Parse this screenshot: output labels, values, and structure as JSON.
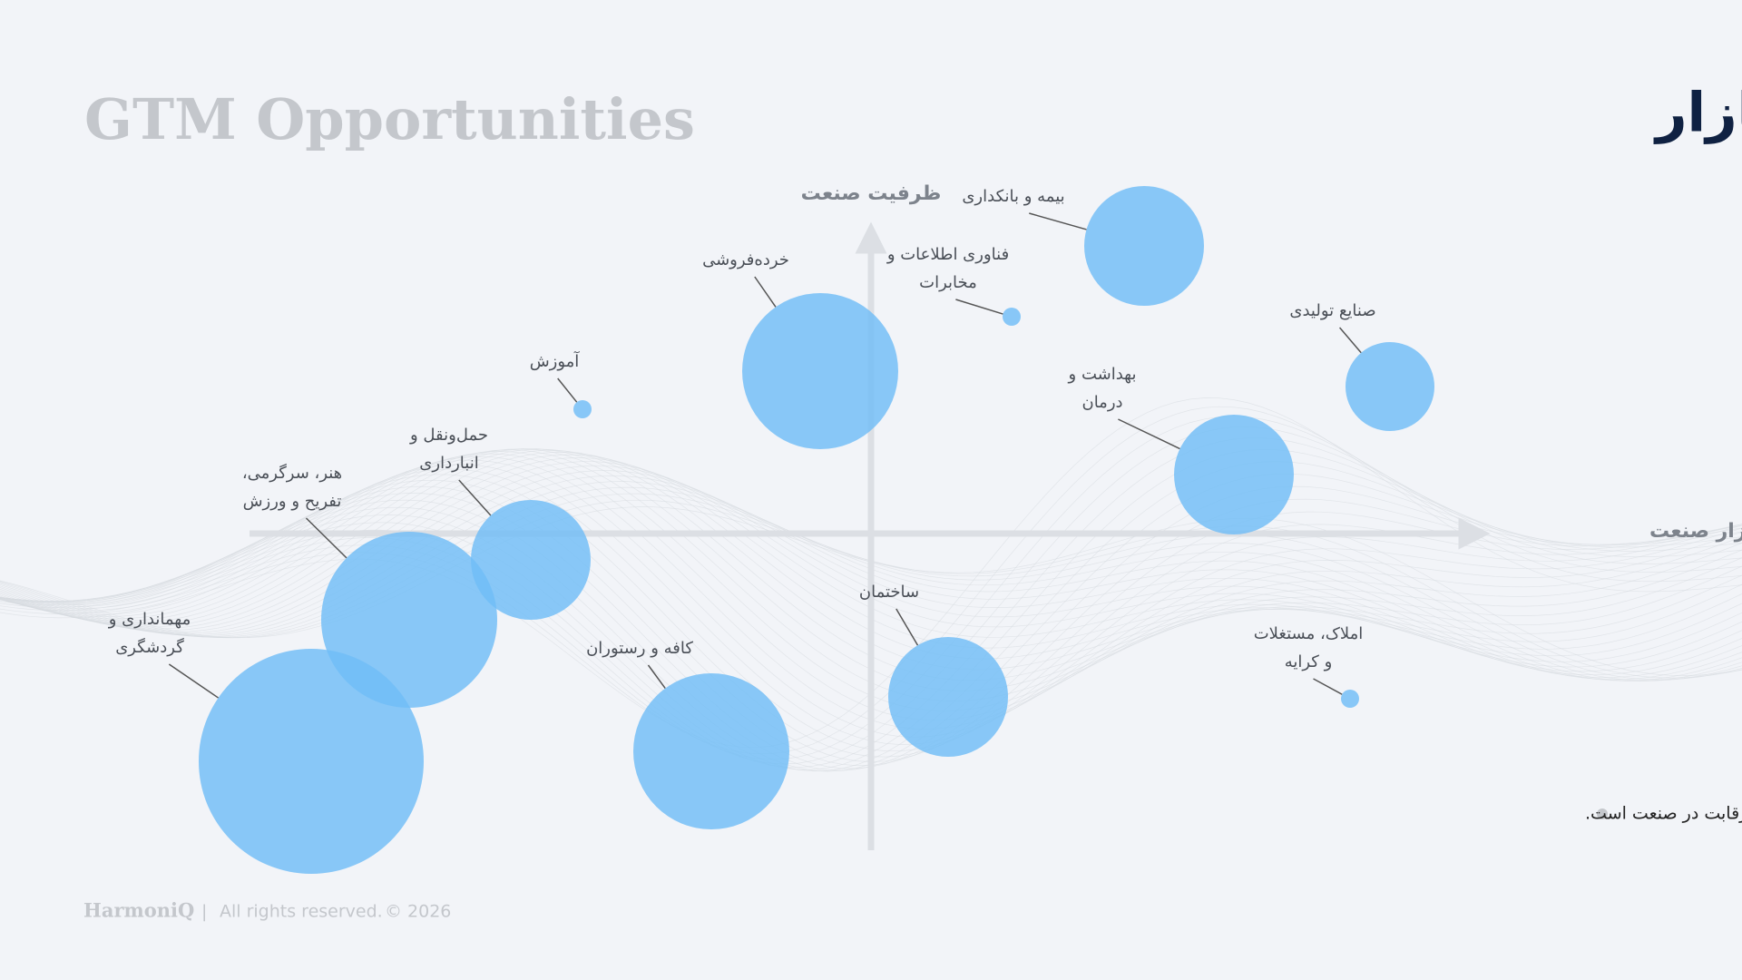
{
  "header": {
    "title_fa": "فرصت‌سنجی ورود به بازار",
    "title_en": "GTM Opportunities"
  },
  "axes": {
    "y_label": "ظرفیت صنعت",
    "x_label": "سهم بازار صنعت"
  },
  "nodes": [
    {
      "lines": [
        "بیمه و بانکداری"
      ]
    },
    {
      "lines": [
        "فناوری اطلاعات و",
        "مخابرات"
      ]
    },
    {
      "lines": [
        "خرده‌فروشی"
      ]
    },
    {
      "lines": [
        "آموزش"
      ]
    },
    {
      "lines": [
        "صنایع تولیدی"
      ]
    },
    {
      "lines": [
        "بهداشت و",
        "درمان"
      ]
    },
    {
      "lines": [
        "حمل‌ونقل و",
        "انبارداری"
      ]
    },
    {
      "lines": [
        "هنر، سرگرمی،",
        "تفریح و ورزش"
      ]
    },
    {
      "lines": [
        "مهمانداری و",
        "گردشگری"
      ]
    },
    {
      "lines": [
        "کافه و رستوران"
      ]
    },
    {
      "lines": [
        "ساختمان"
      ]
    },
    {
      "lines": [
        "املاک، مستغلات",
        "و کرایه"
      ]
    }
  ],
  "note": "شعاع دایره نشان‌دهندهٔ شدت رقابت در صنعت است.",
  "footer": {
    "brand": "HarmoniQ",
    "separator": "|",
    "rights": "All rights reserved.",
    "copyright": "© 2026"
  }
}
